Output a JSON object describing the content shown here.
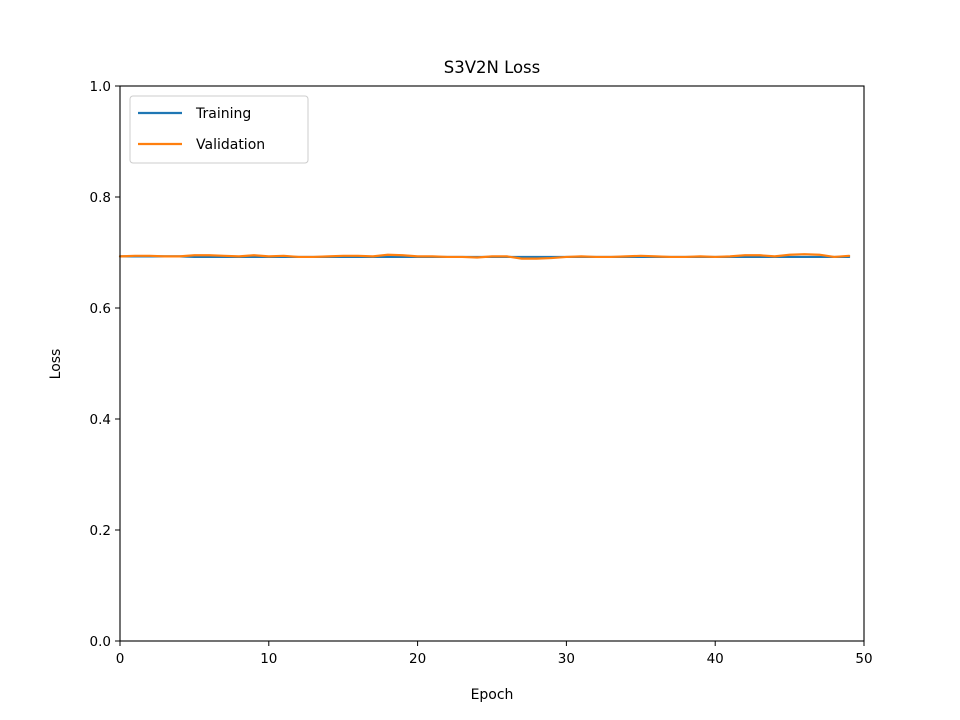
{
  "chart_data": {
    "type": "line",
    "title": "S3V2N Loss",
    "xlabel": "Epoch",
    "ylabel": "Loss",
    "xlim": [
      0,
      50
    ],
    "ylim": [
      0.0,
      1.0
    ],
    "xticks": [
      "0",
      "10",
      "20",
      "30",
      "40",
      "50"
    ],
    "yticks": [
      "0.0",
      "0.2",
      "0.4",
      "0.6",
      "0.8",
      "1.0"
    ],
    "grid": false,
    "legend_position": "top-left",
    "x": [
      0,
      1,
      2,
      3,
      4,
      5,
      6,
      7,
      8,
      9,
      10,
      11,
      12,
      13,
      14,
      15,
      16,
      17,
      18,
      19,
      20,
      21,
      22,
      23,
      24,
      25,
      26,
      27,
      28,
      29,
      30,
      31,
      32,
      33,
      34,
      35,
      36,
      37,
      38,
      39,
      40,
      41,
      42,
      43,
      44,
      45,
      46,
      47,
      48,
      49
    ],
    "series": [
      {
        "name": "Training",
        "color": "#1f77b4",
        "values": [
          0.693,
          0.693,
          0.693,
          0.693,
          0.693,
          0.692,
          0.692,
          0.692,
          0.692,
          0.692,
          0.692,
          0.692,
          0.692,
          0.692,
          0.692,
          0.692,
          0.692,
          0.692,
          0.692,
          0.692,
          0.692,
          0.692,
          0.692,
          0.692,
          0.692,
          0.692,
          0.692,
          0.692,
          0.692,
          0.692,
          0.692,
          0.692,
          0.692,
          0.692,
          0.692,
          0.692,
          0.692,
          0.692,
          0.692,
          0.692,
          0.692,
          0.692,
          0.692,
          0.692,
          0.692,
          0.692,
          0.692,
          0.692,
          0.692,
          0.692
        ]
      },
      {
        "name": "Validation",
        "color": "#ff7f0e",
        "values": [
          0.693,
          0.694,
          0.694,
          0.693,
          0.693,
          0.695,
          0.695,
          0.694,
          0.693,
          0.695,
          0.693,
          0.694,
          0.692,
          0.692,
          0.693,
          0.694,
          0.694,
          0.693,
          0.696,
          0.695,
          0.693,
          0.693,
          0.692,
          0.692,
          0.691,
          0.693,
          0.693,
          0.689,
          0.689,
          0.69,
          0.692,
          0.693,
          0.692,
          0.692,
          0.693,
          0.694,
          0.693,
          0.692,
          0.692,
          0.693,
          0.692,
          0.693,
          0.695,
          0.695,
          0.693,
          0.696,
          0.697,
          0.696,
          0.692,
          0.694
        ]
      }
    ]
  }
}
